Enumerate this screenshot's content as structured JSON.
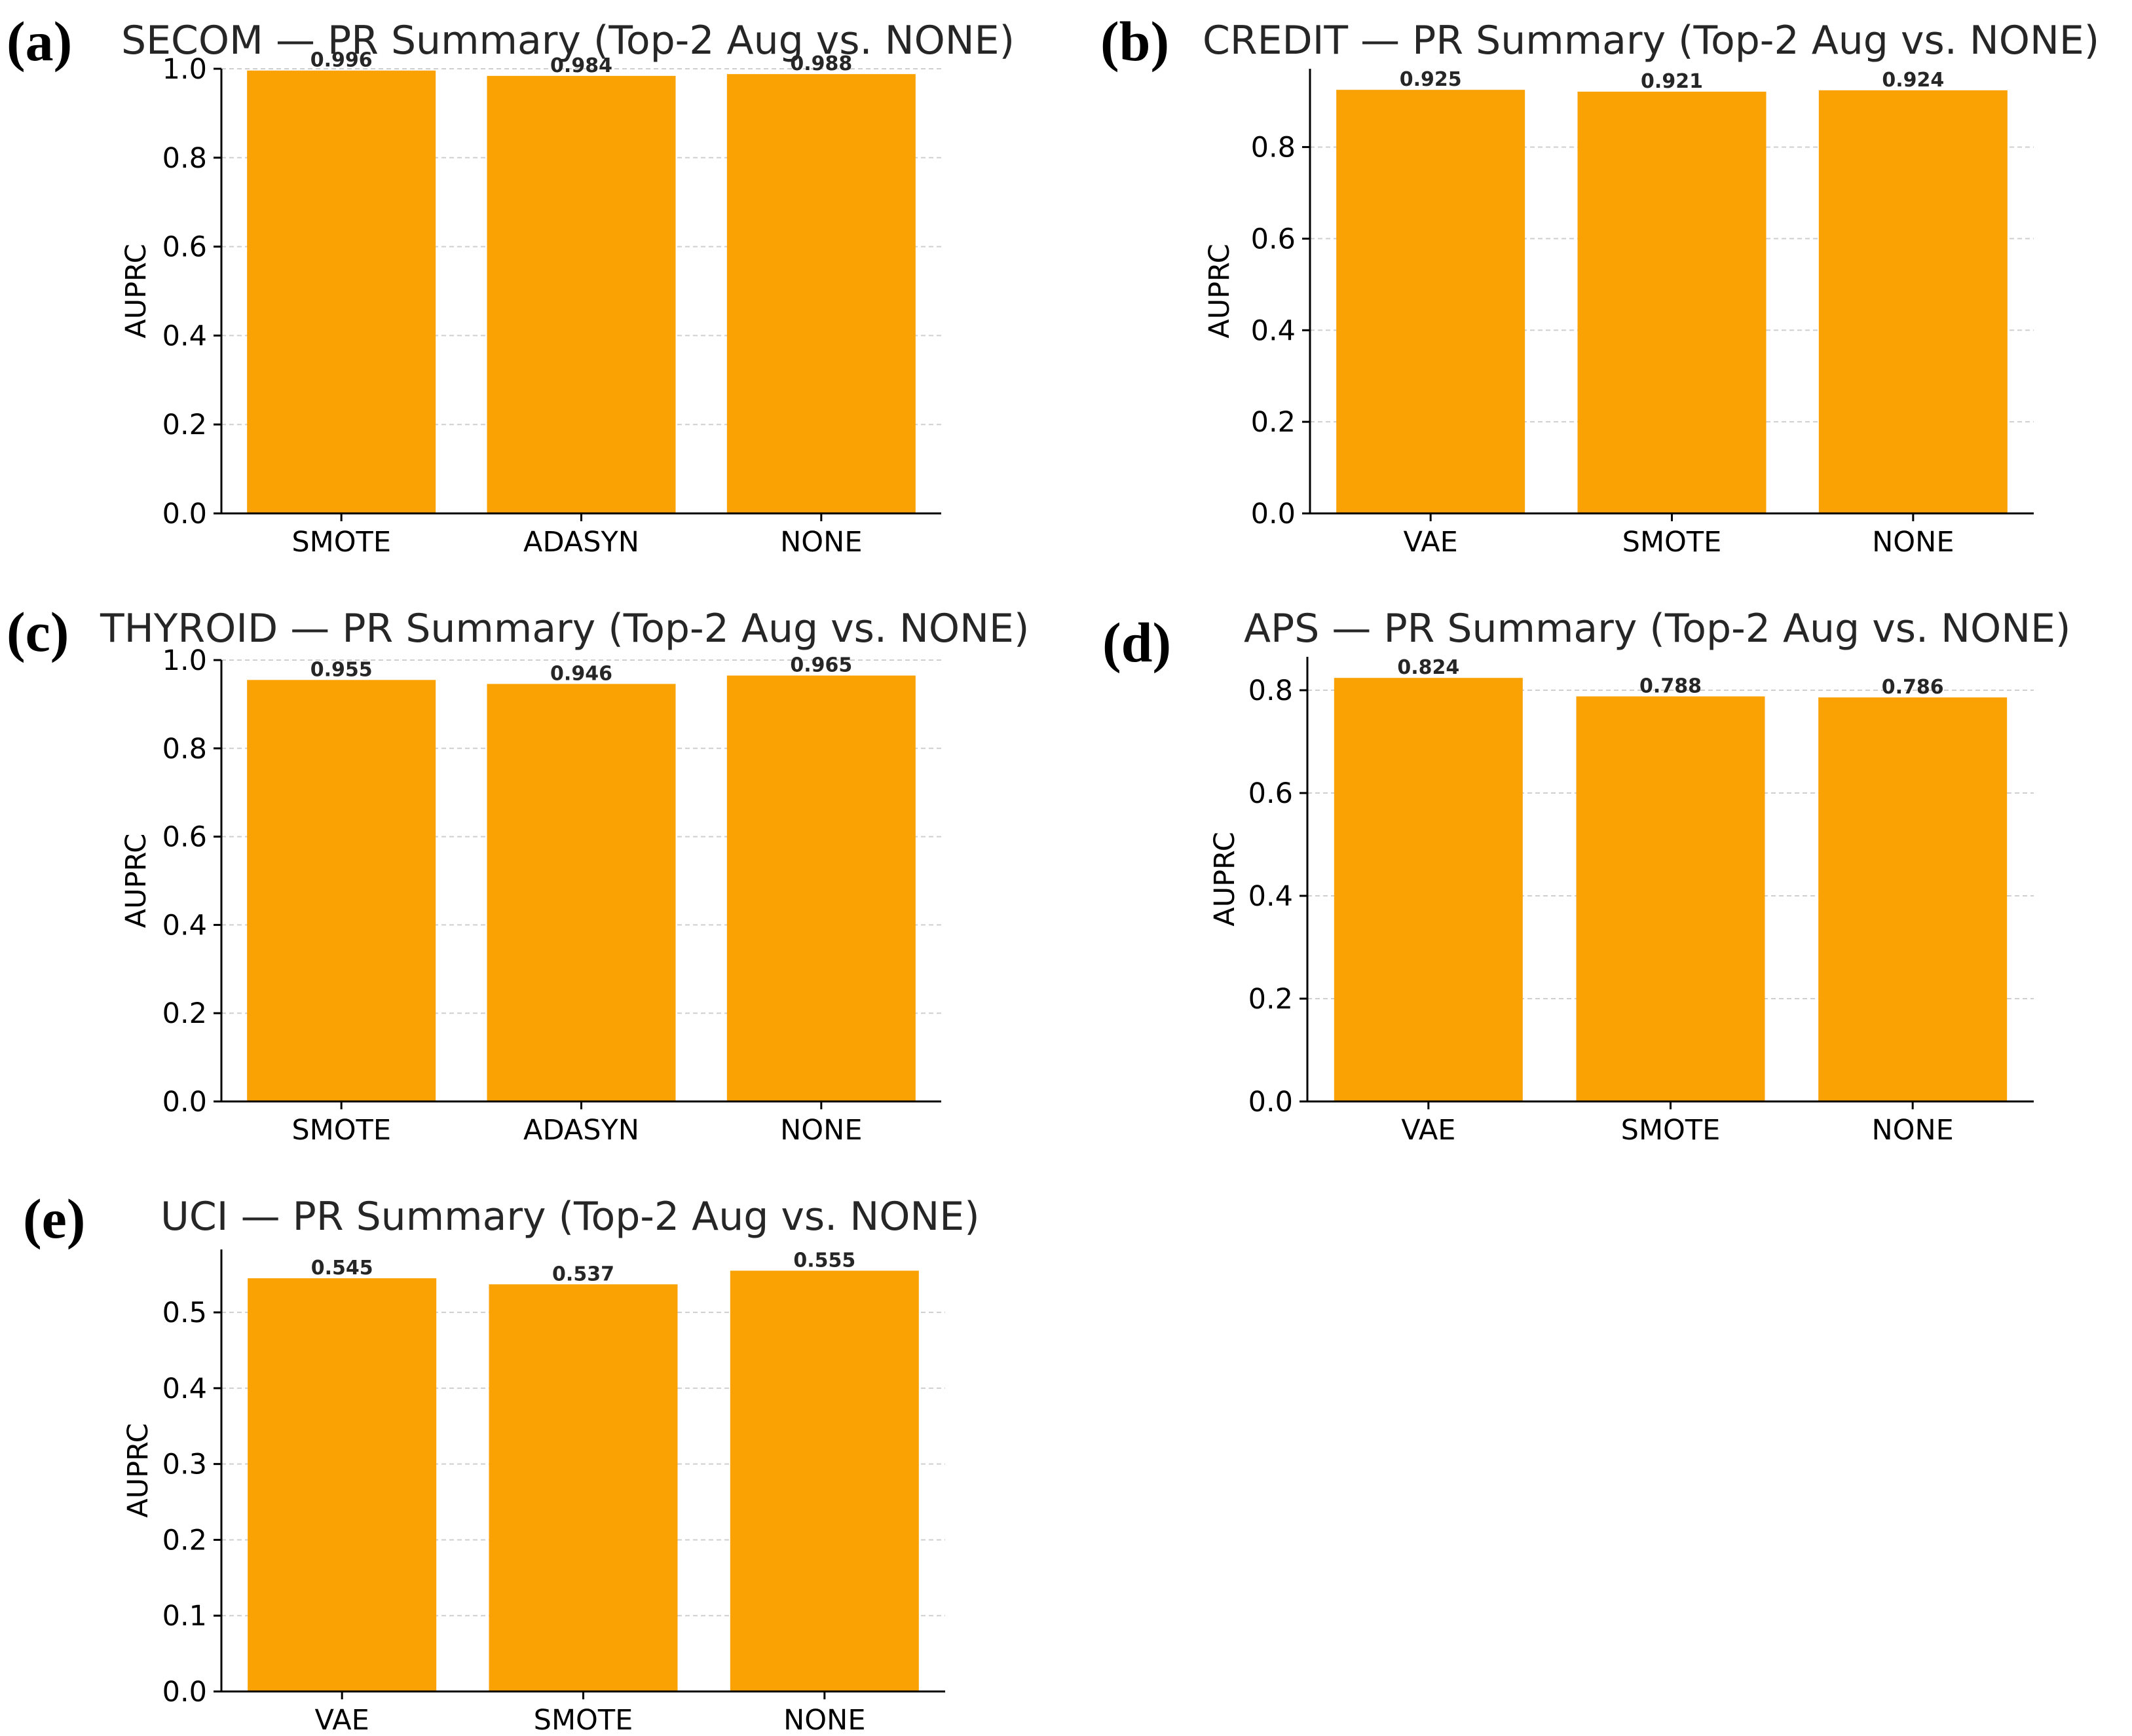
{
  "figure": {
    "bar_color": "#FAA204",
    "grid_color": "#cfcfcf",
    "axis_color": "#000000"
  },
  "chart_data": [
    {
      "panel": "(a)",
      "type": "bar",
      "title": "SECOM — PR Summary (Top-2 Aug vs. NONE)",
      "xlabel": "",
      "ylabel": "AUPRC",
      "categories": [
        "SMOTE",
        "ADASYN",
        "NONE"
      ],
      "values": [
        0.996,
        0.984,
        0.988
      ],
      "value_labels": [
        "0.996",
        "0.984",
        "0.988"
      ],
      "ylim": [
        0,
        1.0
      ],
      "yticks": [
        0.0,
        0.2,
        0.4,
        0.6,
        0.8,
        1.0
      ],
      "ytick_labels": [
        "0.0",
        "0.2",
        "0.4",
        "0.6",
        "0.8",
        "1.0"
      ],
      "grid": true
    },
    {
      "panel": "(b)",
      "type": "bar",
      "title": "CREDIT — PR Summary (Top-2 Aug vs. NONE)",
      "xlabel": "",
      "ylabel": "AUPRC",
      "categories": [
        "VAE",
        "SMOTE",
        "NONE"
      ],
      "values": [
        0.925,
        0.921,
        0.924
      ],
      "value_labels": [
        "0.925",
        "0.921",
        "0.924"
      ],
      "ylim": [
        0,
        0.971
      ],
      "yticks": [
        0.0,
        0.2,
        0.4,
        0.6,
        0.8
      ],
      "ytick_labels": [
        "0.0",
        "0.2",
        "0.4",
        "0.6",
        "0.8"
      ],
      "grid": true
    },
    {
      "panel": "(c)",
      "type": "bar",
      "title": "THYROID — PR Summary (Top-2 Aug vs. NONE)",
      "xlabel": "",
      "ylabel": "AUPRC",
      "categories": [
        "SMOTE",
        "ADASYN",
        "NONE"
      ],
      "values": [
        0.955,
        0.946,
        0.965
      ],
      "value_labels": [
        "0.955",
        "0.946",
        "0.965"
      ],
      "ylim": [
        0,
        1.0
      ],
      "yticks": [
        0.0,
        0.2,
        0.4,
        0.6,
        0.8,
        1.0
      ],
      "ytick_labels": [
        "0.0",
        "0.2",
        "0.4",
        "0.6",
        "0.8",
        "1.0"
      ],
      "grid": true
    },
    {
      "panel": "(d)",
      "type": "bar",
      "title": "APS — PR Summary (Top-2 Aug vs. NONE)",
      "xlabel": "",
      "ylabel": "AUPRC",
      "categories": [
        "VAE",
        "SMOTE",
        "NONE"
      ],
      "values": [
        0.824,
        0.788,
        0.786
      ],
      "value_labels": [
        "0.824",
        "0.788",
        "0.786"
      ],
      "ylim": [
        0,
        0.865
      ],
      "yticks": [
        0.0,
        0.2,
        0.4,
        0.6,
        0.8
      ],
      "ytick_labels": [
        "0.0",
        "0.2",
        "0.4",
        "0.6",
        "0.8"
      ],
      "grid": true
    },
    {
      "panel": "(e)",
      "type": "bar",
      "title": "UCI — PR Summary (Top-2 Aug vs. NONE)",
      "xlabel": "",
      "ylabel": "AUPRC",
      "categories": [
        "VAE",
        "SMOTE",
        "NONE"
      ],
      "values": [
        0.545,
        0.537,
        0.555
      ],
      "value_labels": [
        "0.545",
        "0.537",
        "0.555"
      ],
      "ylim": [
        0,
        0.583
      ],
      "yticks": [
        0.0,
        0.1,
        0.2,
        0.3,
        0.4,
        0.5
      ],
      "ytick_labels": [
        "0.0",
        "0.1",
        "0.2",
        "0.3",
        "0.4",
        "0.5"
      ],
      "grid": true
    }
  ]
}
